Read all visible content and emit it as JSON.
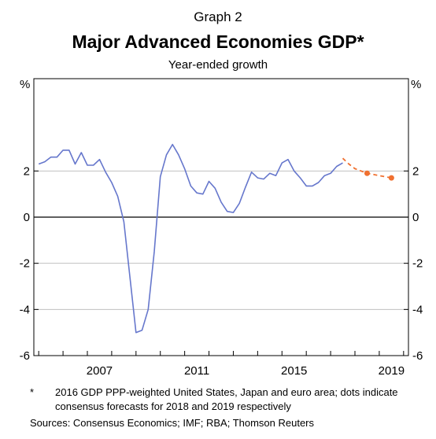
{
  "graph_label": "Graph 2",
  "footnote": {
    "marker": "*",
    "text": "2016 GDP PPP-weighted United States, Japan and euro area; dots indicate consensus forecasts for 2018 and 2019 respectively"
  },
  "sources": "Sources:  Consensus Economics; IMF; RBA; Thomson Reuters",
  "colors": {
    "actual": "#6677cc",
    "forecast": "#f07030",
    "zero_line": "#000000",
    "gridline": "#c0c0c0"
  },
  "chart_data": {
    "type": "line",
    "title": "Major Advanced Economies GDP*",
    "subtitle": "Year-ended growth",
    "left_unit": "%",
    "right_unit": "%",
    "ylim": [
      -6,
      6
    ],
    "yticks": [
      -6,
      -4,
      -2,
      0,
      2
    ],
    "xlim": [
      2004.8,
      2020.2
    ],
    "xtick_labels": [
      "2007",
      "2011",
      "2015",
      "2019"
    ],
    "grid": true,
    "series": [
      {
        "style": "solid",
        "x": [
          2005.0,
          2005.25,
          2005.5,
          2005.75,
          2006.0,
          2006.25,
          2006.5,
          2006.75,
          2007.0,
          2007.25,
          2007.5,
          2007.75,
          2008.0,
          2008.25,
          2008.5,
          2008.75,
          2009.0,
          2009.25,
          2009.5,
          2009.75,
          2010.0,
          2010.25,
          2010.5,
          2010.75,
          2011.0,
          2011.25,
          2011.5,
          2011.75,
          2012.0,
          2012.25,
          2012.5,
          2012.75,
          2013.0,
          2013.25,
          2013.5,
          2013.75,
          2014.0,
          2014.25,
          2014.5,
          2014.75,
          2015.0,
          2015.25,
          2015.5,
          2015.75,
          2016.0,
          2016.25,
          2016.5,
          2016.75,
          2017.0,
          2017.25,
          2017.5
        ],
        "values": [
          2.3,
          2.4,
          2.6,
          2.6,
          2.9,
          2.9,
          2.3,
          2.8,
          2.25,
          2.25,
          2.5,
          1.95,
          1.5,
          0.9,
          -0.2,
          -2.6,
          -5.0,
          -4.9,
          -4.0,
          -1.5,
          1.75,
          2.7,
          3.15,
          2.7,
          2.1,
          1.35,
          1.05,
          1.0,
          1.55,
          1.25,
          0.65,
          0.25,
          0.2,
          0.6,
          1.3,
          1.95,
          1.7,
          1.65,
          1.9,
          1.8,
          2.35,
          2.5,
          2.0,
          1.7,
          1.35,
          1.35,
          1.5,
          1.8,
          1.9,
          2.2,
          2.35
        ]
      },
      {
        "style": "dashed",
        "x": [
          2017.5,
          2017.75,
          2018.0,
          2018.5,
          2019.0,
          2019.5
        ],
        "values": [
          2.55,
          2.3,
          2.1,
          1.9,
          1.8,
          1.7
        ]
      }
    ],
    "forecast_points": [
      {
        "label": "2018",
        "x": 2018.5,
        "y": 1.9
      },
      {
        "label": "2019",
        "x": 2019.5,
        "y": 1.7
      }
    ]
  }
}
